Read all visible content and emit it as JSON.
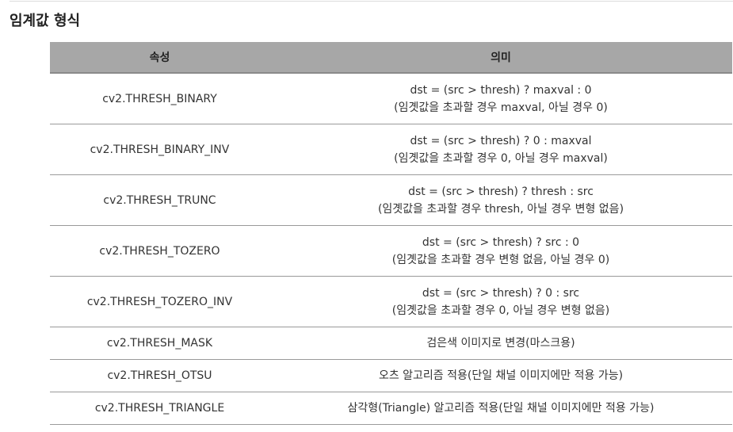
{
  "section": {
    "title": "임계값 형식"
  },
  "table": {
    "headers": [
      "속성",
      "의미"
    ],
    "rows": [
      {
        "attribute": "cv2.THRESH_BINARY",
        "meaning": [
          "dst = (src > thresh) ? maxval : 0",
          "(임곗값을 초과할 경우 maxval, 아닐 경우 0)"
        ]
      },
      {
        "attribute": "cv2.THRESH_BINARY_INV",
        "meaning": [
          "dst = (src > thresh) ? 0 : maxval",
          "(임곗값을 초과할 경우 0, 아닐 경우 maxval)"
        ]
      },
      {
        "attribute": "cv2.THRESH_TRUNC",
        "meaning": [
          "dst = (src > thresh) ? thresh : src",
          "(임곗값을 초과할 경우 thresh, 아닐 경우 변형 없음)"
        ]
      },
      {
        "attribute": "cv2.THRESH_TOZERO",
        "meaning": [
          "dst = (src > thresh) ? src : 0",
          "(임곗값을 초과할 경우 변형 없음, 아닐 경우 0)"
        ]
      },
      {
        "attribute": "cv2.THRESH_TOZERO_INV",
        "meaning": [
          "dst = (src > thresh) ? 0 : src",
          "(임곗값을 초과할 경우 0, 아닐 경우 변형 없음)"
        ]
      },
      {
        "attribute": "cv2.THRESH_MASK",
        "meaning": [
          "검은색 이미지로 변경(마스크용)"
        ]
      },
      {
        "attribute": "cv2.THRESH_OTSU",
        "meaning": [
          "오츠 알고리즘 적용(단일 채널 이미지에만 적용 가능)"
        ]
      },
      {
        "attribute": "cv2.THRESH_TRIANGLE",
        "meaning": [
          "삼각형(Triangle) 알고리즘 적용(단일 채널 이미지에만 적용 가능)"
        ]
      }
    ]
  }
}
